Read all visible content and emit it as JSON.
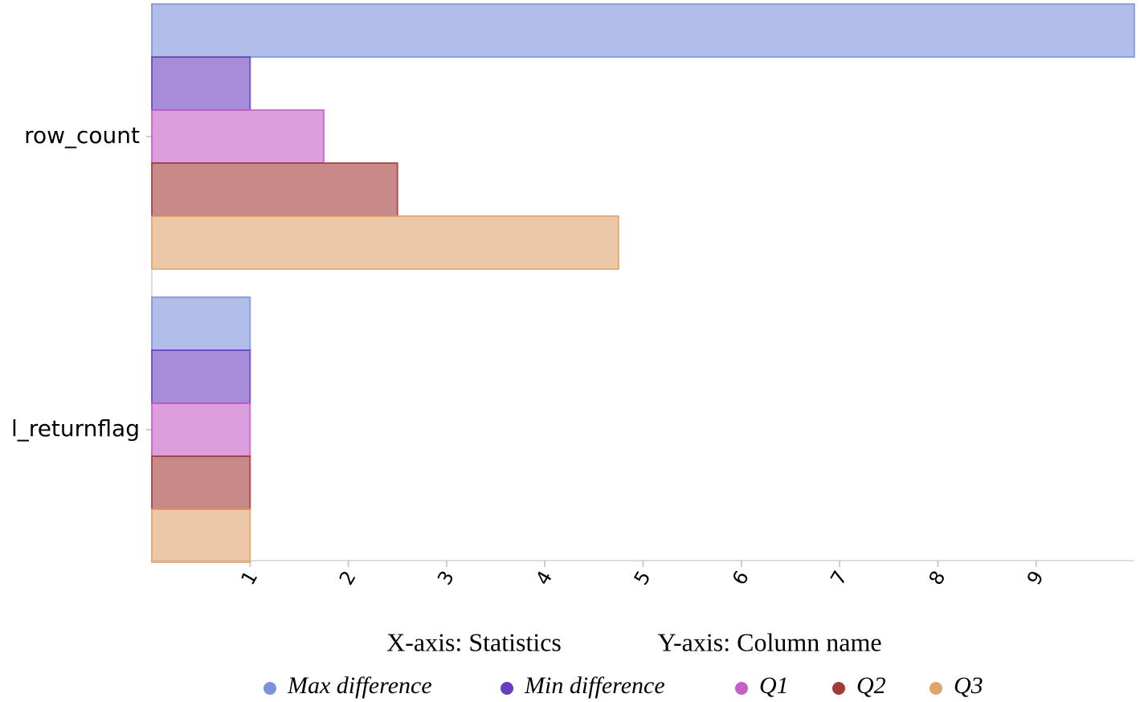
{
  "chart_data": {
    "type": "hbar",
    "xlabel": "X-axis: Statistics",
    "ylabel": "Y-axis: Column name",
    "categories": [
      "row_count",
      "l_returnflag"
    ],
    "series": [
      {
        "name": "Max difference",
        "color": "#7b93db",
        "values": [
          10,
          1
        ]
      },
      {
        "name": "Min difference",
        "color": "#6a3fbf",
        "values": [
          1,
          1
        ]
      },
      {
        "name": "Q1",
        "color": "#c55ec5",
        "values": [
          1.75,
          1
        ]
      },
      {
        "name": "Q2",
        "color": "#a33a3a",
        "values": [
          2.5,
          1
        ]
      },
      {
        "name": "Q3",
        "color": "#e0a46a",
        "values": [
          4.75,
          1
        ]
      }
    ],
    "xlim": [
      0,
      10
    ],
    "xticks": [
      1,
      2,
      3,
      4,
      5,
      6,
      7,
      8,
      9
    ],
    "grid": false
  }
}
